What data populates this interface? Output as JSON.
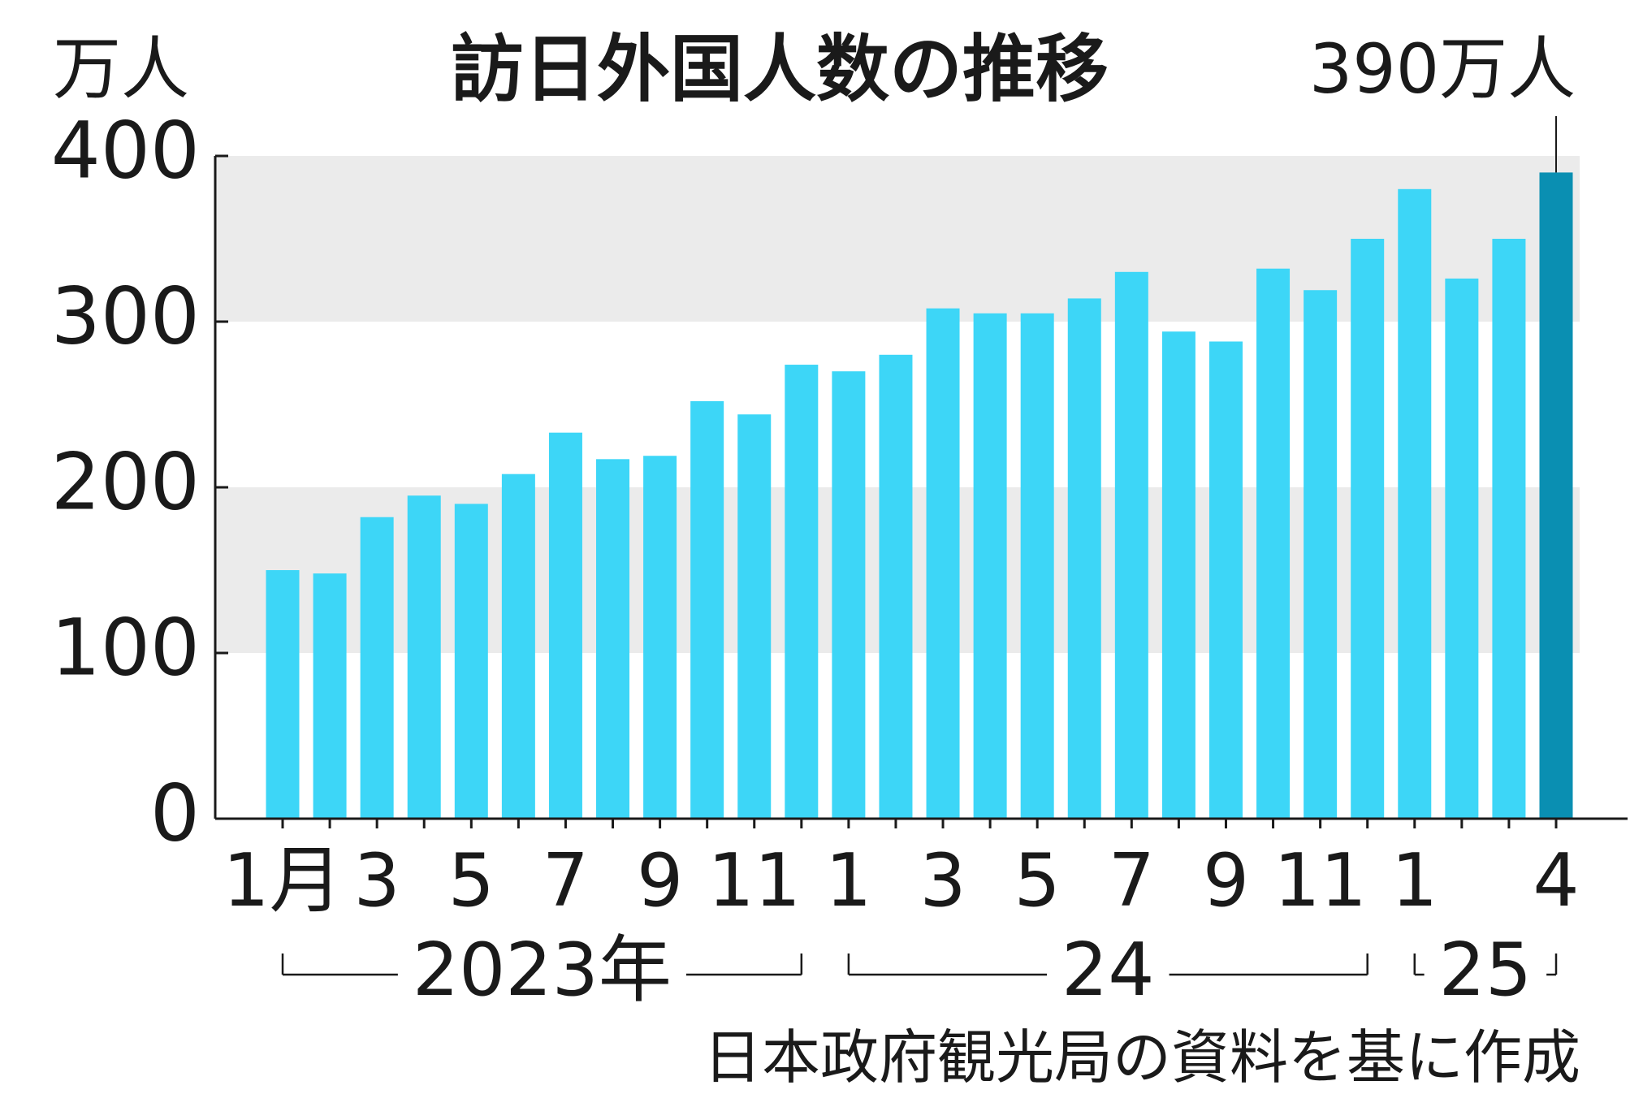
{
  "chart_data": {
    "type": "bar",
    "title": "訪日外国人数の推移",
    "unit_label": "万人",
    "source": "日本政府観光局の資料を基に作成",
    "categories": [
      "1月",
      null,
      "3",
      null,
      "5",
      null,
      "7",
      null,
      "9",
      null,
      "11",
      null,
      "1",
      null,
      "3",
      null,
      "5",
      null,
      "7",
      null,
      "9",
      null,
      "11",
      null,
      "1",
      null,
      null,
      "4"
    ],
    "values": [
      150,
      148,
      182,
      195,
      190,
      208,
      233,
      217,
      219,
      252,
      244,
      274,
      270,
      280,
      308,
      305,
      305,
      314,
      330,
      294,
      288,
      332,
      319,
      350,
      380,
      326,
      350,
      390
    ],
    "value_labels": [
      null,
      null,
      null,
      null,
      null,
      null,
      null,
      null,
      null,
      null,
      null,
      null,
      null,
      null,
      null,
      null,
      null,
      null,
      null,
      null,
      null,
      null,
      null,
      null,
      null,
      null,
      null,
      "390万人"
    ],
    "colors": [
      "#3dd6f7",
      "#3dd6f7",
      "#3dd6f7",
      "#3dd6f7",
      "#3dd6f7",
      "#3dd6f7",
      "#3dd6f7",
      "#3dd6f7",
      "#3dd6f7",
      "#3dd6f7",
      "#3dd6f7",
      "#3dd6f7",
      "#3dd6f7",
      "#3dd6f7",
      "#3dd6f7",
      "#3dd6f7",
      "#3dd6f7",
      "#3dd6f7",
      "#3dd6f7",
      "#3dd6f7",
      "#3dd6f7",
      "#3dd6f7",
      "#3dd6f7",
      "#3dd6f7",
      "#3dd6f7",
      "#3dd6f7",
      "#3dd6f7",
      "#0a8fb2"
    ],
    "year_groups": [
      {
        "label": "2023年",
        "count": 12
      },
      {
        "label": "24",
        "count": 12
      },
      {
        "label": "25",
        "count": 4
      }
    ],
    "ylim": [
      0,
      400
    ],
    "yticks": [
      0,
      100,
      200,
      300,
      400
    ],
    "shaded_bands": [
      [
        100,
        200
      ],
      [
        300,
        400
      ]
    ],
    "band_color": "#ebebeb"
  }
}
